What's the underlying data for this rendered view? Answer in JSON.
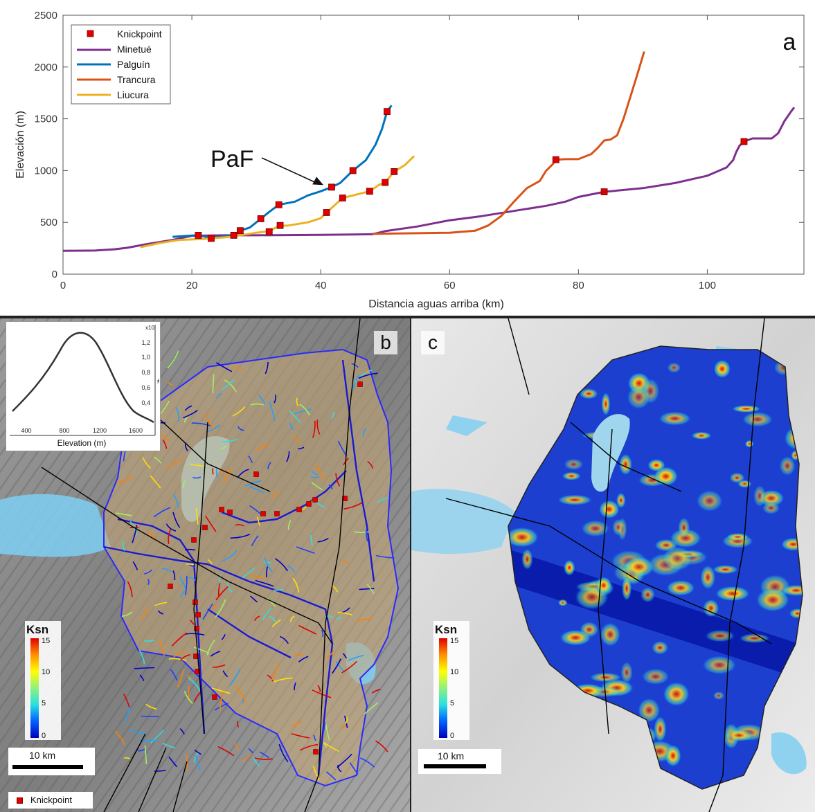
{
  "chart_data": {
    "type": "line",
    "panel_label": "a",
    "xlabel": "Distancia aguas arriba (km)",
    "ylabel": "Elevación (m)",
    "xlim": [
      0,
      115
    ],
    "ylim": [
      0,
      2500
    ],
    "xticks": [
      0,
      20,
      40,
      60,
      80,
      100
    ],
    "yticks": [
      0,
      500,
      1000,
      1500,
      2000,
      2500
    ],
    "legend": {
      "placement": "top-left",
      "entries": [
        "Knickpoint",
        "Minetué",
        "Palguín",
        "Trancura",
        "Liucura"
      ]
    },
    "annotation": {
      "text": "PaF",
      "arrow_to": [
        41.5,
        840
      ]
    },
    "knickpoint_color": "#e00000",
    "series": [
      {
        "name": "Minetué",
        "color": "#7e2f8e",
        "x": [
          0,
          5,
          8,
          10,
          13,
          17,
          20,
          25,
          30,
          40,
          48,
          50,
          55,
          60,
          65,
          70,
          75,
          78,
          80,
          84,
          90,
          95,
          100,
          103,
          104,
          104.5,
          105,
          105.7,
          107,
          110,
          111,
          112,
          113,
          113.5
        ],
        "y": [
          225,
          228,
          240,
          255,
          290,
          330,
          370,
          375,
          375,
          380,
          385,
          415,
          460,
          520,
          560,
          610,
          660,
          700,
          745,
          795,
          830,
          880,
          950,
          1030,
          1100,
          1180,
          1240,
          1280,
          1310,
          1310,
          1360,
          1480,
          1570,
          1610
        ]
      },
      {
        "name": "Palguín",
        "color": "#0072bd",
        "x": [
          17,
          20,
          21,
          23,
          26.5,
          27.5,
          29,
          30.7,
          32,
          33.5,
          36,
          38,
          40,
          41.7,
          43,
          45,
          47,
          48.5,
          49.5,
          50.3,
          51
        ],
        "y": [
          360,
          372,
          375,
          350,
          375,
          420,
          450,
          535,
          600,
          670,
          700,
          760,
          800,
          840,
          880,
          1000,
          1100,
          1250,
          1400,
          1570,
          1630
        ]
      },
      {
        "name": "Trancura",
        "color": "#d95319",
        "x": [
          48,
          55,
          60,
          64,
          66,
          68,
          70,
          72,
          74,
          75,
          76,
          76.5,
          78,
          80,
          82,
          83,
          84,
          85,
          86,
          87,
          88,
          89,
          90.2
        ],
        "y": [
          390,
          395,
          400,
          420,
          470,
          560,
          700,
          830,
          900,
          1000,
          1060,
          1105,
          1110,
          1110,
          1160,
          1220,
          1290,
          1300,
          1340,
          1500,
          1700,
          1900,
          2150
        ]
      },
      {
        "name": "Liucura",
        "color": "#edb120",
        "x": [
          12,
          15,
          18,
          22,
          26,
          28,
          30,
          32,
          33.5,
          35,
          38,
          40,
          41,
          43.4,
          45,
          47.6,
          49,
          50,
          51.4,
          53,
          54.5
        ],
        "y": [
          260,
          300,
          330,
          340,
          360,
          380,
          400,
          415,
          465,
          470,
          500,
          540,
          600,
          735,
          760,
          800,
          860,
          885,
          990,
          1050,
          1140
        ]
      }
    ],
    "knickpoints": [
      {
        "x": 21,
        "y": 375
      },
      {
        "x": 23,
        "y": 345
      },
      {
        "x": 26.5,
        "y": 375
      },
      {
        "x": 27.5,
        "y": 420
      },
      {
        "x": 30.7,
        "y": 535
      },
      {
        "x": 33.5,
        "y": 670
      },
      {
        "x": 41.7,
        "y": 840
      },
      {
        "x": 45,
        "y": 1000
      },
      {
        "x": 50.3,
        "y": 1570
      },
      {
        "x": 32,
        "y": 410
      },
      {
        "x": 33.7,
        "y": 470
      },
      {
        "x": 40.9,
        "y": 595
      },
      {
        "x": 43.4,
        "y": 735
      },
      {
        "x": 47.6,
        "y": 800
      },
      {
        "x": 50,
        "y": 885
      },
      {
        "x": 51.4,
        "y": 990
      },
      {
        "x": 76.5,
        "y": 1105
      },
      {
        "x": 84,
        "y": 795
      },
      {
        "x": 105.7,
        "y": 1280
      }
    ]
  },
  "panel_b": {
    "label": "b",
    "inset": {
      "xlabel": "Elevation (m)",
      "xticks": [
        "400",
        "800",
        "1200",
        "1600"
      ],
      "yticks": [
        "1,2",
        "1,0",
        "0,8",
        "0,6",
        "0,4"
      ],
      "y_exponent": "x10",
      "ylabel": "#"
    },
    "colorbar": {
      "title": "Ksn",
      "ticks": [
        "15",
        "10",
        "5",
        "0"
      ]
    },
    "scale": "10 km",
    "legend_label": "Knickpoint"
  },
  "panel_c": {
    "label": "c",
    "colorbar": {
      "title": "Ksn",
      "ticks": [
        "15",
        "10",
        "5",
        "0"
      ]
    },
    "scale": "10 km"
  }
}
